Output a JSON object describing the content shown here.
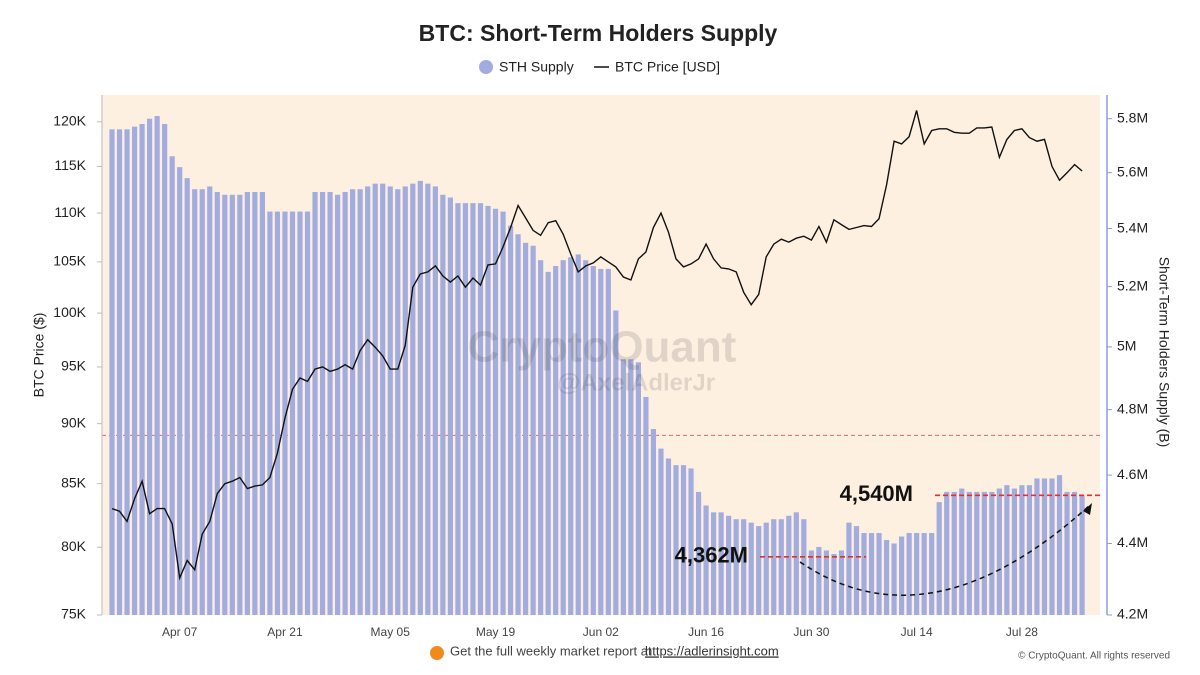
{
  "chart_data": {
    "type": "bar_line",
    "title": "BTC: Short-Term Holders Supply",
    "y_label": "BTC Price ($)",
    "y2_label": "Short-Term Holders Supply (B)",
    "watermark": [
      "CryptoQuant",
      "@AxelAdlerJr"
    ],
    "footer": {
      "text": "Get the full weekly market report at",
      "link": "https://adlerinsight.com",
      "copyright": "© CryptoQuant. All rights reserved"
    },
    "log_scale": true,
    "background": "#fdf0e1",
    "categories": [
      null,
      null,
      null,
      null,
      null,
      null,
      null,
      null,
      null,
      "Apr 07",
      null,
      null,
      null,
      null,
      null,
      null,
      null,
      null,
      null,
      null,
      null,
      null,
      null,
      "Apr 21",
      null,
      null,
      null,
      null,
      null,
      null,
      null,
      null,
      null,
      null,
      null,
      null,
      null,
      "May 05",
      null,
      null,
      null,
      null,
      null,
      null,
      null,
      null,
      null,
      null,
      null,
      null,
      null,
      "May 19",
      null,
      null,
      null,
      null,
      null,
      null,
      null,
      null,
      null,
      null,
      null,
      null,
      null,
      "Jun 02",
      null,
      null,
      null,
      null,
      null,
      null,
      null,
      null,
      null,
      null,
      null,
      null,
      null,
      "Jun 16",
      null,
      null,
      null,
      null,
      null,
      null,
      null,
      null,
      null,
      null,
      null,
      null,
      null,
      "Jun 30",
      null,
      null,
      null,
      null,
      null,
      null,
      null,
      null,
      null,
      null,
      null,
      null,
      null,
      "Jul 14",
      null,
      null,
      null,
      null,
      null,
      null,
      null,
      null,
      null,
      null,
      null,
      null,
      null,
      "Jul 28",
      null,
      null,
      null,
      null,
      null,
      null,
      null,
      null
    ],
    "series": [
      {
        "name": "STH Supply",
        "color": "#a3acdf",
        "axis": "y2",
        "kind": "bar",
        "values": [
          5760000,
          5760000,
          5760000,
          5770000,
          5780000,
          5800000,
          5810000,
          5780000,
          5660000,
          5620000,
          5580000,
          5540000,
          5540000,
          5550000,
          5530000,
          5520000,
          5520000,
          5520000,
          5530000,
          5530000,
          5530000,
          5460000,
          5460000,
          5460000,
          5460000,
          5460000,
          5460000,
          5530000,
          5530000,
          5530000,
          5520000,
          5530000,
          5540000,
          5540000,
          5550000,
          5560000,
          5560000,
          5550000,
          5540000,
          5550000,
          5560000,
          5570000,
          5560000,
          5550000,
          5520000,
          5510000,
          5490000,
          5490000,
          5490000,
          5490000,
          5480000,
          5470000,
          5460000,
          5410000,
          5380000,
          5350000,
          5340000,
          5290000,
          5250000,
          5270000,
          5290000,
          5300000,
          5310000,
          5290000,
          5270000,
          5260000,
          5260000,
          5120000,
          4960000,
          4960000,
          4950000,
          4840000,
          4740000,
          4680000,
          4650000,
          4630000,
          4630000,
          4620000,
          4550000,
          4510000,
          4490000,
          4490000,
          4480000,
          4470000,
          4470000,
          4460000,
          4450000,
          4460000,
          4470000,
          4470000,
          4480000,
          4490000,
          4470000,
          4380000,
          4390000,
          4380000,
          4370000,
          4380000,
          4460000,
          4450000,
          4430000,
          4430000,
          4430000,
          4410000,
          4400000,
          4420000,
          4430000,
          4430000,
          4430000,
          4430000,
          4520000,
          4550000,
          4550000,
          4560000,
          4550000,
          4550000,
          4550000,
          4550000,
          4560000,
          4570000,
          4560000,
          4570000,
          4570000,
          4590000,
          4590000,
          4590000,
          4600000,
          4550000,
          4550000,
          4540000
        ]
      },
      {
        "name": "BTC Price [USD]",
        "color": "#111111",
        "axis": "y",
        "kind": "line",
        "values": [
          83000,
          82800,
          82000,
          83800,
          85200,
          82600,
          83000,
          83000,
          81800,
          77700,
          79000,
          78300,
          81000,
          82000,
          84200,
          85000,
          85200,
          85500,
          84600,
          84800,
          84900,
          85500,
          87500,
          90500,
          93000,
          94000,
          93700,
          94800,
          95000,
          94600,
          94800,
          95200,
          94800,
          96500,
          97500,
          96800,
          96000,
          94800,
          94800,
          97000,
          102500,
          103800,
          104000,
          104600,
          103600,
          103000,
          103600,
          102500,
          103400,
          102700,
          104700,
          104800,
          106500,
          108500,
          110800,
          109500,
          108200,
          107700,
          109000,
          109200,
          107800,
          105800,
          104000,
          104600,
          104900,
          105500,
          105000,
          104500,
          103500,
          103200,
          105300,
          106000,
          108500,
          110000,
          108000,
          105300,
          104500,
          104800,
          105300,
          106800,
          105300,
          104400,
          104300,
          104000,
          102000,
          100800,
          101800,
          105500,
          106800,
          107300,
          107000,
          107400,
          107600,
          107200,
          108600,
          107000,
          109300,
          108800,
          108300,
          108500,
          108700,
          108600,
          109400,
          113000,
          117800,
          117500,
          118300,
          121300,
          117500,
          119000,
          119200,
          119200,
          118800,
          118700,
          118700,
          119300,
          119300,
          119400,
          116000,
          118000,
          119000,
          119200,
          118200,
          117800,
          118000,
          115000,
          113500,
          114300,
          115200,
          114500
        ]
      }
    ],
    "ylim": [
      75000,
      123100
    ],
    "yticks": [
      {
        "value": 75000,
        "label": "75K"
      },
      {
        "value": 80000,
        "label": "80K"
      },
      {
        "value": 85000,
        "label": "85K"
      },
      {
        "value": 90000,
        "label": "90K"
      },
      {
        "value": 95000,
        "label": "95K"
      },
      {
        "value": 100000,
        "label": "100K"
      },
      {
        "value": 105000,
        "label": "105K"
      },
      {
        "value": 110000,
        "label": "110K"
      },
      {
        "value": 115000,
        "label": "115K"
      },
      {
        "value": 120000,
        "label": "120K"
      }
    ],
    "y2lim": [
      4200000,
      5890000
    ],
    "y2ticks": [
      {
        "value": 4200000,
        "label": "4.2M"
      },
      {
        "value": 4400000,
        "label": "4.4M"
      },
      {
        "value": 4600000,
        "label": "4.6M"
      },
      {
        "value": 4800000,
        "label": "4.8M"
      },
      {
        "value": 5000000,
        "label": "5M"
      },
      {
        "value": 5200000,
        "label": "5.2M"
      },
      {
        "value": 5400000,
        "label": "5.4M"
      },
      {
        "value": 5600000,
        "label": "5.6M"
      },
      {
        "value": 5800000,
        "label": "5.8M"
      }
    ],
    "reference_line": {
      "value": 89000,
      "axis": "y",
      "color": "#d96a6a"
    },
    "annotations": [
      {
        "text": "4,362M",
        "value": 4362000,
        "axis": "y2",
        "color": "#e03030"
      },
      {
        "text": "4,540M",
        "value": 4540000,
        "axis": "y2",
        "color": "#e03030"
      }
    ]
  }
}
